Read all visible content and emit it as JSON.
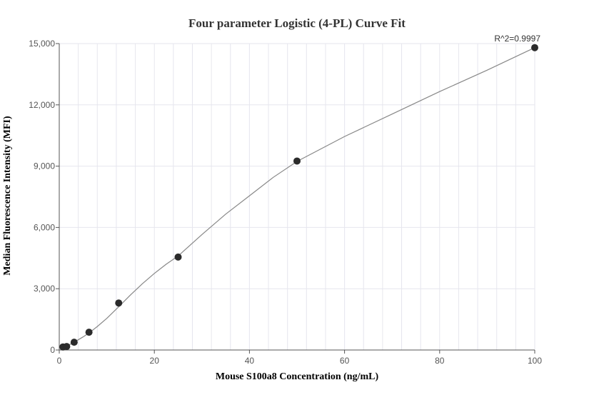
{
  "chart_data": {
    "type": "scatter",
    "title": "Four parameter Logistic (4-PL) Curve Fit",
    "xlabel": "Mouse S100a8 Concentration (ng/mL)",
    "ylabel": "Median Fluorescence Intensity (MFI)",
    "xlim": [
      0,
      100
    ],
    "ylim": [
      0,
      15000
    ],
    "x_ticks": [
      "0",
      "20",
      "40",
      "60",
      "80",
      "100"
    ],
    "y_ticks": [
      "0",
      "3,000",
      "6,000",
      "9,000",
      "12,000",
      "15,000"
    ],
    "grid": true,
    "annotation": "R^2=0.9997",
    "points": [
      {
        "x": 0.78,
        "y": 150
      },
      {
        "x": 1.56,
        "y": 170
      },
      {
        "x": 3.13,
        "y": 380
      },
      {
        "x": 6.25,
        "y": 870
      },
      {
        "x": 12.5,
        "y": 2300
      },
      {
        "x": 25,
        "y": 4550
      },
      {
        "x": 50,
        "y": 9250
      },
      {
        "x": 100,
        "y": 14800
      }
    ],
    "fit_curve": [
      {
        "x": 0,
        "y": 80
      },
      {
        "x": 1,
        "y": 130
      },
      {
        "x": 2,
        "y": 240
      },
      {
        "x": 3,
        "y": 360
      },
      {
        "x": 4,
        "y": 500
      },
      {
        "x": 5,
        "y": 640
      },
      {
        "x": 6.25,
        "y": 830
      },
      {
        "x": 8,
        "y": 1150
      },
      {
        "x": 10,
        "y": 1550
      },
      {
        "x": 12.5,
        "y": 2120
      },
      {
        "x": 15,
        "y": 2700
      },
      {
        "x": 17.5,
        "y": 3250
      },
      {
        "x": 20,
        "y": 3750
      },
      {
        "x": 22.5,
        "y": 4200
      },
      {
        "x": 25,
        "y": 4600
      },
      {
        "x": 30,
        "y": 5650
      },
      {
        "x": 35,
        "y": 6650
      },
      {
        "x": 40,
        "y": 7550
      },
      {
        "x": 45,
        "y": 8450
      },
      {
        "x": 50,
        "y": 9230
      },
      {
        "x": 60,
        "y": 10450
      },
      {
        "x": 70,
        "y": 11550
      },
      {
        "x": 80,
        "y": 12650
      },
      {
        "x": 90,
        "y": 13700
      },
      {
        "x": 100,
        "y": 14800
      }
    ],
    "colors": {
      "point": "#2b2b2b",
      "curve": "#888888",
      "grid": "#e6e6ee",
      "axis": "#555555"
    }
  }
}
